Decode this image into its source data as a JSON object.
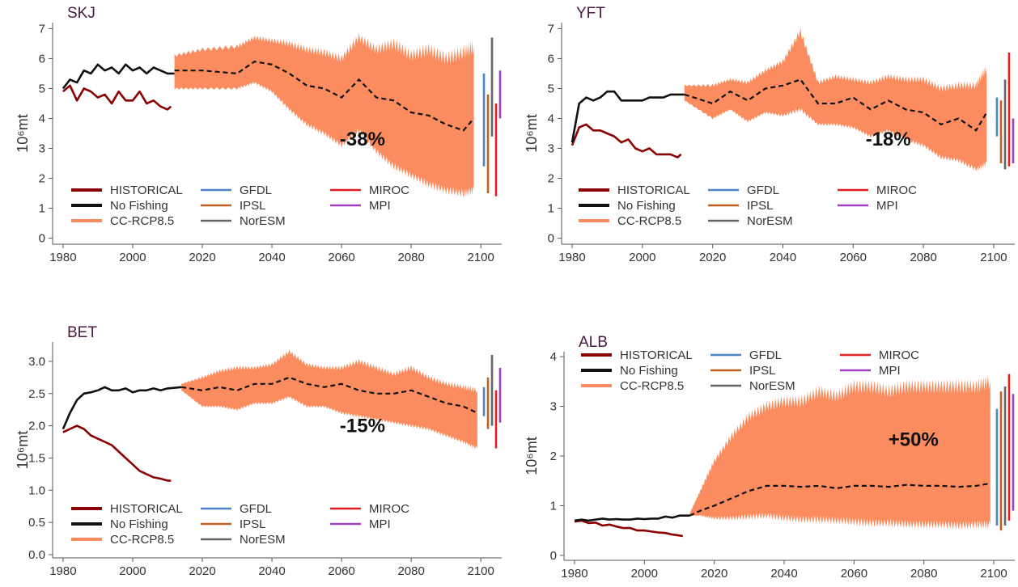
{
  "colors": {
    "historical": "#8b0000",
    "no_fishing": "#111111",
    "cc_band": "#fb8c5f",
    "projection_mean": "#111111",
    "GFDL": "#4a86c8",
    "IPSL": "#c06020",
    "NorESM": "#666666",
    "MIROC": "#e02020",
    "MPI": "#a040c0",
    "title": "#4a1942"
  },
  "legend": {
    "historical": "HISTORICAL",
    "no_fishing": "No Fishing",
    "cc": "CC-RCP8.5",
    "gfdl": "GFDL",
    "ipsl": "IPSL",
    "noresm": "NorESM",
    "miroc": "MIROC",
    "mpi": "MPI"
  },
  "chart_data": [
    {
      "type": "area",
      "title": "SKJ",
      "ylabel": "10⁶mt",
      "xlim": [
        1977,
        2106
      ],
      "ylim": [
        -0.2,
        7.2
      ],
      "xticks": [
        1980,
        2000,
        2020,
        2040,
        2060,
        2080,
        2100
      ],
      "yticks": [
        0,
        1,
        2,
        3,
        4,
        5,
        6,
        7
      ],
      "annotation": "-38%",
      "annotation_at": [
        2066,
        3.1
      ],
      "legend_position": "bottom-left",
      "series": [
        {
          "name": "HISTORICAL",
          "key": "historical",
          "x": [
            1980,
            1982,
            1984,
            1986,
            1988,
            1990,
            1992,
            1994,
            1996,
            1998,
            2000,
            2002,
            2004,
            2006,
            2008,
            2010,
            2011
          ],
          "y": [
            4.9,
            5.1,
            4.6,
            5.0,
            4.9,
            4.7,
            4.8,
            4.5,
            4.9,
            4.6,
            4.6,
            4.9,
            4.5,
            4.6,
            4.4,
            4.3,
            4.4
          ]
        },
        {
          "name": "No Fishing",
          "key": "no_fishing",
          "x": [
            1980,
            1982,
            1984,
            1986,
            1988,
            1990,
            1992,
            1994,
            1996,
            1998,
            2000,
            2002,
            2004,
            2006,
            2008,
            2010,
            2012
          ],
          "y": [
            5.0,
            5.3,
            5.2,
            5.6,
            5.5,
            5.8,
            5.6,
            5.7,
            5.5,
            5.8,
            5.6,
            5.7,
            5.5,
            5.7,
            5.6,
            5.5,
            5.5
          ]
        },
        {
          "name": "CC-RCP8.5",
          "key": "cc",
          "x": [
            2012,
            2020,
            2030,
            2035,
            2040,
            2045,
            2050,
            2055,
            2060,
            2065,
            2070,
            2075,
            2080,
            2085,
            2090,
            2095,
            2098
          ],
          "y": [
            5.6,
            5.6,
            5.5,
            5.9,
            5.8,
            5.5,
            5.1,
            5.0,
            4.7,
            5.3,
            4.7,
            4.6,
            4.2,
            4.1,
            3.8,
            3.6,
            4.0
          ],
          "lower": [
            5.0,
            5.0,
            5.0,
            5.2,
            4.9,
            4.3,
            3.8,
            3.5,
            3.1,
            3.6,
            2.9,
            2.4,
            2.1,
            1.8,
            1.6,
            1.5,
            1.6
          ],
          "upper": [
            6.1,
            6.3,
            6.4,
            6.7,
            6.6,
            6.5,
            6.3,
            6.2,
            6.0,
            6.7,
            6.3,
            6.5,
            6.1,
            6.3,
            6.0,
            6.2,
            6.4
          ]
        }
      ],
      "model_ranges": [
        {
          "name": "GFDL",
          "key": "GFDL",
          "low": 2.4,
          "high": 5.5
        },
        {
          "name": "IPSL",
          "key": "IPSL",
          "low": 1.5,
          "high": 4.8
        },
        {
          "name": "NorESM",
          "key": "NorESM",
          "low": 3.4,
          "high": 6.7
        },
        {
          "name": "MIROC",
          "key": "MIROC",
          "low": 1.4,
          "high": 4.5
        },
        {
          "name": "MPI",
          "key": "MPI",
          "low": 4.0,
          "high": 5.6
        }
      ]
    },
    {
      "type": "area",
      "title": "YFT",
      "ylabel": "10⁶mt",
      "xlim": [
        1977,
        2106
      ],
      "ylim": [
        -0.2,
        7.2
      ],
      "xticks": [
        1980,
        2000,
        2020,
        2040,
        2060,
        2080,
        2100
      ],
      "yticks": [
        0,
        1,
        2,
        3,
        4,
        5,
        6,
        7
      ],
      "annotation": "-18%",
      "annotation_at": [
        2070,
        3.1
      ],
      "legend_position": "bottom-left",
      "series": [
        {
          "name": "HISTORICAL",
          "key": "historical",
          "x": [
            1980,
            1982,
            1984,
            1986,
            1988,
            1990,
            1992,
            1994,
            1996,
            1998,
            2000,
            2002,
            2004,
            2006,
            2008,
            2010,
            2011
          ],
          "y": [
            3.1,
            3.7,
            3.8,
            3.6,
            3.6,
            3.5,
            3.4,
            3.2,
            3.3,
            3.0,
            2.9,
            3.0,
            2.8,
            2.8,
            2.8,
            2.7,
            2.8
          ]
        },
        {
          "name": "No Fishing",
          "key": "no_fishing",
          "x": [
            1980,
            1982,
            1984,
            1986,
            1988,
            1990,
            1992,
            1994,
            1996,
            1998,
            2000,
            2002,
            2004,
            2006,
            2008,
            2010,
            2012
          ],
          "y": [
            3.2,
            4.5,
            4.7,
            4.6,
            4.7,
            4.9,
            4.9,
            4.6,
            4.6,
            4.6,
            4.6,
            4.7,
            4.7,
            4.7,
            4.8,
            4.8,
            4.8
          ]
        },
        {
          "name": "CC-RCP8.5",
          "key": "cc",
          "x": [
            2012,
            2020,
            2025,
            2030,
            2035,
            2040,
            2045,
            2050,
            2055,
            2060,
            2065,
            2070,
            2075,
            2080,
            2085,
            2090,
            2095,
            2098
          ],
          "y": [
            4.8,
            4.5,
            4.9,
            4.6,
            5.0,
            5.1,
            5.3,
            4.5,
            4.5,
            4.7,
            4.3,
            4.6,
            4.3,
            4.2,
            3.8,
            4.0,
            3.6,
            4.2
          ],
          "lower": [
            4.6,
            4.0,
            4.3,
            3.9,
            4.2,
            4.1,
            4.3,
            3.8,
            3.8,
            3.7,
            3.4,
            3.6,
            3.3,
            3.1,
            2.7,
            2.6,
            2.3,
            2.5
          ],
          "upper": [
            5.1,
            5.1,
            5.3,
            5.2,
            5.6,
            5.9,
            6.9,
            5.2,
            5.4,
            5.3,
            5.2,
            5.4,
            5.3,
            5.3,
            5.0,
            5.1,
            5.1,
            5.7
          ]
        }
      ],
      "model_ranges": [
        {
          "name": "GFDL",
          "key": "GFDL",
          "low": 3.4,
          "high": 4.7
        },
        {
          "name": "IPSL",
          "key": "IPSL",
          "low": 2.5,
          "high": 4.6
        },
        {
          "name": "NorESM",
          "key": "NorESM",
          "low": 2.3,
          "high": 5.3
        },
        {
          "name": "MIROC",
          "key": "MIROC",
          "low": 2.4,
          "high": 6.2
        },
        {
          "name": "MPI",
          "key": "MPI",
          "low": 2.5,
          "high": 4.0
        }
      ]
    },
    {
      "type": "area",
      "title": "BET",
      "ylabel": "10⁶mt",
      "xlim": [
        1977,
        2106
      ],
      "ylim": [
        -0.05,
        3.3
      ],
      "xticks": [
        1980,
        2000,
        2020,
        2040,
        2060,
        2080,
        2100
      ],
      "yticks": [
        0.0,
        0.5,
        1.0,
        1.5,
        2.0,
        2.5,
        3.0
      ],
      "ytick_labels": [
        "0.0",
        "0.5",
        "1.0",
        "1.5",
        "2.0",
        "2.5",
        "3.0"
      ],
      "annotation": "-15%",
      "annotation_at": [
        2066,
        1.9
      ],
      "legend_position": "bottom-left",
      "series": [
        {
          "name": "HISTORICAL",
          "key": "historical",
          "x": [
            1980,
            1982,
            1984,
            1986,
            1988,
            1990,
            1992,
            1994,
            1996,
            1998,
            2000,
            2002,
            2004,
            2006,
            2008,
            2010,
            2011
          ],
          "y": [
            1.9,
            1.95,
            2.0,
            1.95,
            1.85,
            1.8,
            1.75,
            1.7,
            1.6,
            1.5,
            1.4,
            1.3,
            1.25,
            1.2,
            1.18,
            1.15,
            1.15
          ]
        },
        {
          "name": "No Fishing",
          "key": "no_fishing",
          "x": [
            1980,
            1982,
            1984,
            1986,
            1988,
            1990,
            1992,
            1994,
            1996,
            1998,
            2000,
            2002,
            2004,
            2006,
            2008,
            2010,
            2014
          ],
          "y": [
            1.95,
            2.2,
            2.4,
            2.5,
            2.52,
            2.55,
            2.6,
            2.55,
            2.55,
            2.58,
            2.52,
            2.55,
            2.55,
            2.58,
            2.55,
            2.58,
            2.6
          ]
        },
        {
          "name": "CC-RCP8.5",
          "key": "cc",
          "x": [
            2014,
            2020,
            2025,
            2030,
            2035,
            2040,
            2045,
            2050,
            2055,
            2060,
            2065,
            2070,
            2075,
            2080,
            2085,
            2090,
            2095,
            2099
          ],
          "y": [
            2.6,
            2.55,
            2.6,
            2.55,
            2.65,
            2.65,
            2.75,
            2.65,
            2.6,
            2.65,
            2.55,
            2.5,
            2.5,
            2.55,
            2.45,
            2.35,
            2.3,
            2.2
          ],
          "lower": [
            2.55,
            2.3,
            2.3,
            2.25,
            2.35,
            2.35,
            2.45,
            2.3,
            2.3,
            2.2,
            2.15,
            2.1,
            2.05,
            2.0,
            1.95,
            1.85,
            1.75,
            1.65
          ],
          "upper": [
            2.65,
            2.75,
            2.85,
            2.9,
            2.9,
            2.95,
            3.15,
            2.95,
            2.9,
            2.9,
            3.0,
            2.9,
            2.8,
            2.9,
            2.75,
            2.65,
            2.6,
            2.55
          ]
        }
      ],
      "model_ranges": [
        {
          "name": "GFDL",
          "key": "GFDL",
          "low": 2.15,
          "high": 2.6
        },
        {
          "name": "IPSL",
          "key": "IPSL",
          "low": 1.95,
          "high": 2.75
        },
        {
          "name": "NorESM",
          "key": "NorESM",
          "low": 2.0,
          "high": 3.1
        },
        {
          "name": "MIROC",
          "key": "MIROC",
          "low": 1.65,
          "high": 2.55
        },
        {
          "name": "MPI",
          "key": "MPI",
          "low": 2.05,
          "high": 2.9
        }
      ]
    },
    {
      "type": "area",
      "title": "ALB",
      "ylabel": "10⁶mt",
      "xlim": [
        1977,
        2106
      ],
      "ylim": [
        -0.1,
        4.1
      ],
      "xticks": [
        1980,
        2000,
        2020,
        2040,
        2060,
        2080,
        2100
      ],
      "yticks": [
        0,
        1,
        2,
        3,
        4
      ],
      "annotation": "+50%",
      "annotation_at": [
        2077,
        2.2
      ],
      "legend_position": "top-left",
      "series": [
        {
          "name": "HISTORICAL",
          "key": "historical",
          "x": [
            1980,
            1982,
            1984,
            1986,
            1988,
            1990,
            1992,
            1994,
            1996,
            1998,
            2000,
            2002,
            2004,
            2006,
            2008,
            2010,
            2011
          ],
          "y": [
            0.68,
            0.7,
            0.65,
            0.66,
            0.6,
            0.62,
            0.58,
            0.55,
            0.55,
            0.5,
            0.5,
            0.48,
            0.46,
            0.45,
            0.42,
            0.4,
            0.39
          ]
        },
        {
          "name": "No Fishing",
          "key": "no_fishing",
          "x": [
            1980,
            1982,
            1984,
            1986,
            1988,
            1990,
            1992,
            1994,
            1996,
            1998,
            2000,
            2002,
            2004,
            2006,
            2008,
            2010,
            2013
          ],
          "y": [
            0.7,
            0.72,
            0.7,
            0.72,
            0.74,
            0.72,
            0.73,
            0.72,
            0.72,
            0.74,
            0.73,
            0.74,
            0.74,
            0.78,
            0.76,
            0.8,
            0.8
          ]
        },
        {
          "name": "CC-RCP8.5",
          "key": "cc",
          "x": [
            2013,
            2016,
            2020,
            2025,
            2030,
            2035,
            2040,
            2045,
            2050,
            2055,
            2060,
            2065,
            2070,
            2075,
            2080,
            2085,
            2090,
            2095,
            2099
          ],
          "y": [
            0.8,
            0.9,
            1.0,
            1.15,
            1.3,
            1.4,
            1.4,
            1.38,
            1.4,
            1.35,
            1.4,
            1.4,
            1.38,
            1.42,
            1.4,
            1.4,
            1.38,
            1.4,
            1.45
          ],
          "lower": [
            0.8,
            0.8,
            0.75,
            0.75,
            0.78,
            0.8,
            0.75,
            0.72,
            0.72,
            0.7,
            0.68,
            0.65,
            0.65,
            0.63,
            0.62,
            0.62,
            0.6,
            0.62,
            0.62
          ],
          "upper": [
            0.85,
            1.3,
            1.9,
            2.4,
            2.8,
            3.0,
            3.1,
            3.1,
            3.3,
            3.2,
            3.4,
            3.4,
            3.3,
            3.4,
            3.4,
            3.4,
            3.4,
            3.4,
            3.5
          ]
        }
      ],
      "model_ranges": [
        {
          "name": "GFDL",
          "key": "GFDL",
          "low": 0.6,
          "high": 2.95
        },
        {
          "name": "IPSL",
          "key": "IPSL",
          "low": 0.5,
          "high": 3.3
        },
        {
          "name": "NorESM",
          "key": "NorESM",
          "low": 0.6,
          "high": 3.4
        },
        {
          "name": "MIROC",
          "key": "MIROC",
          "low": 0.7,
          "high": 3.65
        },
        {
          "name": "MPI",
          "key": "MPI",
          "low": 0.9,
          "high": 3.25
        }
      ]
    }
  ]
}
